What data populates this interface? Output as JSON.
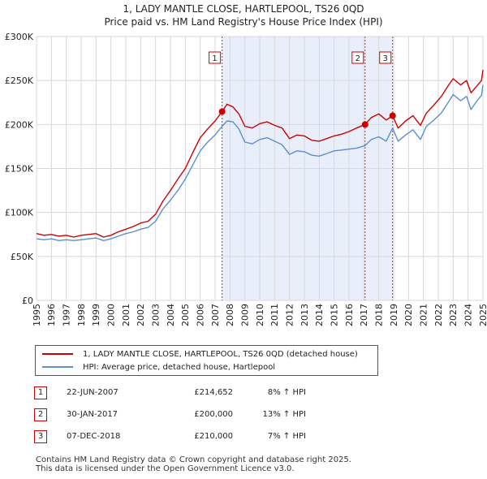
{
  "header": {
    "title": "1, LADY MANTLE CLOSE, HARTLEPOOL, TS26 0QD",
    "subtitle": "Price paid vs. HM Land Registry's House Price Index (HPI)"
  },
  "chart_data": {
    "type": "line",
    "x_range": [
      1995,
      2025
    ],
    "ylim": [
      0,
      300000
    ],
    "y_ticks": [
      0,
      50000,
      100000,
      150000,
      200000,
      250000,
      300000
    ],
    "y_tick_labels": [
      "£0",
      "£50K",
      "£100K",
      "£150K",
      "£200K",
      "£250K",
      "£300K"
    ],
    "x_ticks": [
      1995,
      1996,
      1997,
      1998,
      1999,
      2000,
      2001,
      2002,
      2003,
      2004,
      2005,
      2006,
      2007,
      2008,
      2009,
      2010,
      2011,
      2012,
      2013,
      2014,
      2015,
      2016,
      2017,
      2018,
      2019,
      2020,
      2021,
      2022,
      2023,
      2024,
      2025
    ],
    "x_tick_labels": [
      "1995",
      "1996",
      "1997",
      "1998",
      "1999",
      "2000",
      "2001",
      "2002",
      "2003",
      "2004",
      "2005",
      "2006",
      "2007",
      "2008",
      "2009",
      "2010",
      "2011",
      "2012",
      "2013",
      "2014",
      "2015",
      "2016",
      "2017",
      "2018",
      "2019",
      "2020",
      "2021",
      "2022",
      "2023",
      "2024",
      "2025"
    ],
    "shaded_region": [
      2007.47,
      2018.93
    ],
    "series": [
      {
        "name": "1, LADY MANTLE CLOSE, HARTLEPOOL, TS26 0QD (detached house)",
        "color": "#cc0000",
        "points": [
          [
            1995.0,
            76000
          ],
          [
            1995.5,
            74000
          ],
          [
            1996.0,
            75000
          ],
          [
            1996.5,
            73000
          ],
          [
            1997.0,
            74000
          ],
          [
            1997.5,
            72000
          ],
          [
            1998.0,
            74000
          ],
          [
            1998.5,
            75000
          ],
          [
            1999.0,
            76000
          ],
          [
            1999.5,
            72000
          ],
          [
            2000.0,
            74000
          ],
          [
            2000.5,
            78000
          ],
          [
            2001.0,
            81000
          ],
          [
            2001.5,
            84000
          ],
          [
            2002.0,
            88000
          ],
          [
            2002.5,
            90000
          ],
          [
            2003.0,
            98000
          ],
          [
            2003.5,
            113000
          ],
          [
            2004.0,
            125000
          ],
          [
            2004.5,
            138000
          ],
          [
            2005.0,
            150000
          ],
          [
            2005.5,
            168000
          ],
          [
            2006.0,
            185000
          ],
          [
            2006.5,
            195000
          ],
          [
            2007.0,
            204000
          ],
          [
            2007.47,
            214652
          ],
          [
            2007.8,
            223000
          ],
          [
            2008.2,
            220000
          ],
          [
            2008.6,
            212000
          ],
          [
            2009.0,
            198000
          ],
          [
            2009.5,
            196000
          ],
          [
            2010.0,
            201000
          ],
          [
            2010.5,
            203000
          ],
          [
            2011.0,
            199000
          ],
          [
            2011.5,
            196000
          ],
          [
            2012.0,
            184000
          ],
          [
            2012.5,
            188000
          ],
          [
            2013.0,
            187000
          ],
          [
            2013.5,
            182000
          ],
          [
            2014.0,
            181000
          ],
          [
            2014.5,
            184000
          ],
          [
            2015.0,
            187000
          ],
          [
            2015.5,
            189000
          ],
          [
            2016.0,
            192000
          ],
          [
            2016.5,
            196000
          ],
          [
            2017.08,
            200000
          ],
          [
            2017.5,
            208000
          ],
          [
            2018.0,
            212000
          ],
          [
            2018.5,
            205000
          ],
          [
            2018.93,
            210000
          ],
          [
            2019.3,
            196000
          ],
          [
            2019.8,
            204000
          ],
          [
            2020.3,
            210000
          ],
          [
            2020.8,
            199000
          ],
          [
            2021.2,
            213000
          ],
          [
            2021.7,
            222000
          ],
          [
            2022.2,
            232000
          ],
          [
            2022.7,
            245000
          ],
          [
            2023.0,
            252000
          ],
          [
            2023.5,
            245000
          ],
          [
            2023.9,
            250000
          ],
          [
            2024.2,
            236000
          ],
          [
            2024.6,
            244000
          ],
          [
            2024.9,
            250000
          ],
          [
            2025.0,
            262000
          ]
        ]
      },
      {
        "name": "HPI: Average price, detached house, Hartlepool",
        "color": "#5b8fcf",
        "points": [
          [
            1995.0,
            70000
          ],
          [
            1995.5,
            69000
          ],
          [
            1996.0,
            70000
          ],
          [
            1996.5,
            68000
          ],
          [
            1997.0,
            69000
          ],
          [
            1997.5,
            68000
          ],
          [
            1998.0,
            69000
          ],
          [
            1998.5,
            70000
          ],
          [
            1999.0,
            71000
          ],
          [
            1999.5,
            68000
          ],
          [
            2000.0,
            70000
          ],
          [
            2000.5,
            73000
          ],
          [
            2001.0,
            76000
          ],
          [
            2001.5,
            78000
          ],
          [
            2002.0,
            81000
          ],
          [
            2002.5,
            83000
          ],
          [
            2003.0,
            90000
          ],
          [
            2003.5,
            104000
          ],
          [
            2004.0,
            114000
          ],
          [
            2004.5,
            125000
          ],
          [
            2005.0,
            138000
          ],
          [
            2005.5,
            154000
          ],
          [
            2006.0,
            170000
          ],
          [
            2006.5,
            180000
          ],
          [
            2007.0,
            188000
          ],
          [
            2007.47,
            198000
          ],
          [
            2007.8,
            204000
          ],
          [
            2008.2,
            203000
          ],
          [
            2008.6,
            195000
          ],
          [
            2009.0,
            180000
          ],
          [
            2009.5,
            178000
          ],
          [
            2010.0,
            183000
          ],
          [
            2010.5,
            185000
          ],
          [
            2011.0,
            181000
          ],
          [
            2011.5,
            177000
          ],
          [
            2012.0,
            166000
          ],
          [
            2012.5,
            170000
          ],
          [
            2013.0,
            169000
          ],
          [
            2013.5,
            165000
          ],
          [
            2014.0,
            164000
          ],
          [
            2014.5,
            167000
          ],
          [
            2015.0,
            170000
          ],
          [
            2015.5,
            171000
          ],
          [
            2016.0,
            172000
          ],
          [
            2016.5,
            173000
          ],
          [
            2017.08,
            176000
          ],
          [
            2017.5,
            183000
          ],
          [
            2018.0,
            186000
          ],
          [
            2018.5,
            181000
          ],
          [
            2018.93,
            196000
          ],
          [
            2019.3,
            181000
          ],
          [
            2019.8,
            188000
          ],
          [
            2020.3,
            194000
          ],
          [
            2020.8,
            183000
          ],
          [
            2021.2,
            198000
          ],
          [
            2021.7,
            205000
          ],
          [
            2022.2,
            213000
          ],
          [
            2022.7,
            226000
          ],
          [
            2023.0,
            234000
          ],
          [
            2023.5,
            227000
          ],
          [
            2023.9,
            232000
          ],
          [
            2024.2,
            217000
          ],
          [
            2024.6,
            227000
          ],
          [
            2024.9,
            233000
          ],
          [
            2025.0,
            245000
          ]
        ]
      }
    ],
    "markers": [
      {
        "label": "1",
        "x": 2007.47,
        "y": 214652
      },
      {
        "label": "2",
        "x": 2017.08,
        "y": 200000
      },
      {
        "label": "3",
        "x": 2018.93,
        "y": 210000
      }
    ]
  },
  "legend": {
    "items": [
      {
        "label": "1, LADY MANTLE CLOSE, HARTLEPOOL, TS26 0QD (detached house)",
        "color": "#cc0000"
      },
      {
        "label": "HPI: Average price, detached house, Hartlepool",
        "color": "#5b8fcf"
      }
    ]
  },
  "transactions": [
    {
      "num": "1",
      "date": "22-JUN-2007",
      "price": "£214,652",
      "hpi": "8% ↑ HPI"
    },
    {
      "num": "2",
      "date": "30-JAN-2017",
      "price": "£200,000",
      "hpi": "13% ↑ HPI"
    },
    {
      "num": "3",
      "date": "07-DEC-2018",
      "price": "£210,000",
      "hpi": "7% ↑ HPI"
    }
  ],
  "footer": {
    "line1": "Contains HM Land Registry data © Crown copyright and database right 2025.",
    "line2": "This data is licensed under the Open Government Licence v3.0."
  }
}
